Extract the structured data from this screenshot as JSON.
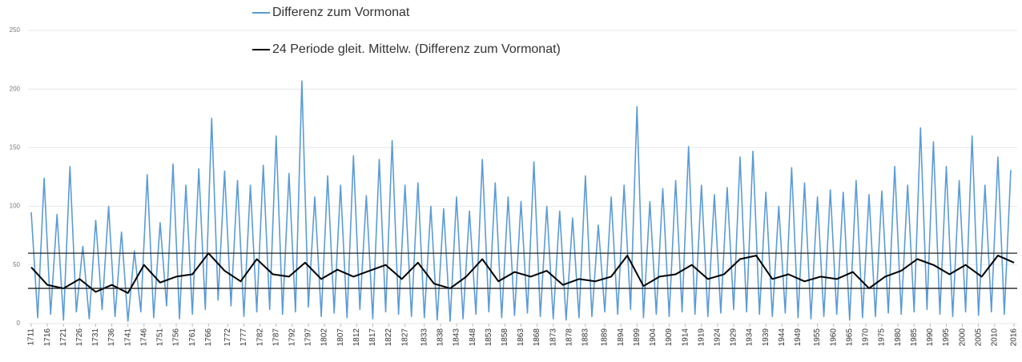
{
  "chart_data": {
    "type": "line",
    "series": [
      {
        "name": "Differenz zum Vormonat",
        "color": "#5b9bd5",
        "x": [
          1711,
          1713,
          1715,
          1717,
          1719,
          1721,
          1723,
          1725,
          1727,
          1729,
          1731,
          1733,
          1735,
          1737,
          1739,
          1741,
          1743,
          1745,
          1747,
          1749,
          1751,
          1753,
          1755,
          1757,
          1759,
          1761,
          1763,
          1765,
          1767,
          1769,
          1771,
          1773,
          1775,
          1777,
          1779,
          1781,
          1783,
          1785,
          1787,
          1789,
          1791,
          1793,
          1795,
          1797,
          1799,
          1801,
          1803,
          1805,
          1807,
          1809,
          1811,
          1813,
          1815,
          1817,
          1819,
          1821,
          1823,
          1825,
          1827,
          1829,
          1831,
          1833,
          1835,
          1837,
          1839,
          1841,
          1843,
          1845,
          1847,
          1849,
          1851,
          1853,
          1855,
          1857,
          1859,
          1861,
          1863,
          1865,
          1867,
          1869,
          1871,
          1873,
          1875,
          1877,
          1879,
          1881,
          1883,
          1885,
          1887,
          1889,
          1891,
          1893,
          1895,
          1897,
          1899,
          1901,
          1903,
          1905,
          1907,
          1909,
          1911,
          1913,
          1915,
          1917,
          1919,
          1921,
          1923,
          1925,
          1927,
          1929,
          1931,
          1933,
          1935,
          1937,
          1939,
          1941,
          1943,
          1945,
          1947,
          1949,
          1951,
          1953,
          1955,
          1957,
          1959,
          1961,
          1963,
          1965,
          1967,
          1969,
          1971,
          1973,
          1975,
          1977,
          1979,
          1981,
          1983,
          1985,
          1987,
          1989,
          1991,
          1993,
          1995,
          1997,
          1999,
          2001,
          2003,
          2005,
          2007,
          2009,
          2011,
          2013,
          2015
        ],
        "values": [
          95,
          5,
          124,
          8,
          93,
          3,
          134,
          10,
          66,
          4,
          88,
          12,
          100,
          6,
          78,
          2,
          62,
          10,
          127,
          5,
          86,
          15,
          136,
          4,
          118,
          8,
          132,
          12,
          175,
          20,
          130,
          15,
          122,
          6,
          118,
          10,
          135,
          12,
          160,
          8,
          128,
          10,
          207,
          14,
          108,
          6,
          126,
          9,
          118,
          5,
          143,
          12,
          109,
          4,
          140,
          10,
          156,
          8,
          118,
          6,
          120,
          5,
          100,
          3,
          98,
          2,
          108,
          4,
          96,
          8,
          140,
          10,
          120,
          5,
          108,
          7,
          104,
          9,
          138,
          6,
          100,
          4,
          96,
          3,
          90,
          5,
          126,
          6,
          84,
          10,
          108,
          8,
          118,
          12,
          185,
          5,
          104,
          8,
          115,
          6,
          122,
          10,
          151,
          8,
          118,
          6,
          110,
          9,
          116,
          12,
          142,
          10,
          147,
          8,
          112,
          6,
          100,
          9,
          133,
          5,
          120,
          4,
          108,
          6,
          114,
          8,
          112,
          3,
          122,
          5,
          110,
          6,
          113,
          9,
          134,
          8,
          118,
          10,
          167,
          12,
          155,
          8,
          134,
          6,
          122,
          10,
          160,
          7,
          118,
          10,
          142,
          8,
          131
        ]
      },
      {
        "name": "24 Periode gleit. Mittelw. (Differenz zum Vormonat)",
        "color": "#000000",
        "x": [
          1711,
          1716,
          1721,
          1726,
          1731,
          1736,
          1741,
          1746,
          1751,
          1756,
          1761,
          1766,
          1771,
          1776,
          1781,
          1786,
          1791,
          1796,
          1801,
          1806,
          1811,
          1816,
          1821,
          1826,
          1831,
          1836,
          1841,
          1846,
          1851,
          1856,
          1861,
          1866,
          1871,
          1876,
          1881,
          1886,
          1891,
          1896,
          1901,
          1906,
          1911,
          1916,
          1921,
          1926,
          1931,
          1936,
          1941,
          1946,
          1951,
          1956,
          1961,
          1966,
          1971,
          1976,
          1981,
          1986,
          1991,
          1996,
          2001,
          2006,
          2011,
          2016
        ],
        "values": [
          48,
          33,
          30,
          38,
          27,
          33,
          26,
          50,
          35,
          40,
          42,
          60,
          45,
          36,
          55,
          42,
          40,
          52,
          38,
          46,
          40,
          45,
          50,
          38,
          52,
          34,
          30,
          40,
          55,
          36,
          44,
          40,
          45,
          33,
          38,
          36,
          40,
          58,
          32,
          40,
          42,
          50,
          38,
          42,
          55,
          58,
          38,
          42,
          36,
          40,
          38,
          44,
          30,
          40,
          45,
          55,
          50,
          42,
          50,
          40,
          58,
          52
        ]
      }
    ],
    "hlines": [
      30,
      60
    ],
    "xlim": [
      1710,
      2017
    ],
    "xticks": [
      1711,
      1716,
      1721,
      1726,
      1731,
      1736,
      1741,
      1746,
      1751,
      1756,
      1761,
      1766,
      1772,
      1777,
      1782,
      1787,
      1792,
      1797,
      1802,
      1807,
      1812,
      1817,
      1822,
      1827,
      1833,
      1838,
      1843,
      1848,
      1853,
      1858,
      1863,
      1868,
      1873,
      1878,
      1883,
      1889,
      1894,
      1899,
      1904,
      1909,
      1914,
      1919,
      1924,
      1929,
      1934,
      1939,
      1944,
      1949,
      1955,
      1960,
      1965,
      1970,
      1975,
      1980,
      1985,
      1990,
      1995,
      2000,
      2005,
      2010,
      2016
    ],
    "ylim": [
      0,
      250
    ],
    "yticks": [
      0,
      50,
      100,
      150,
      200,
      250
    ],
    "grid": true
  }
}
